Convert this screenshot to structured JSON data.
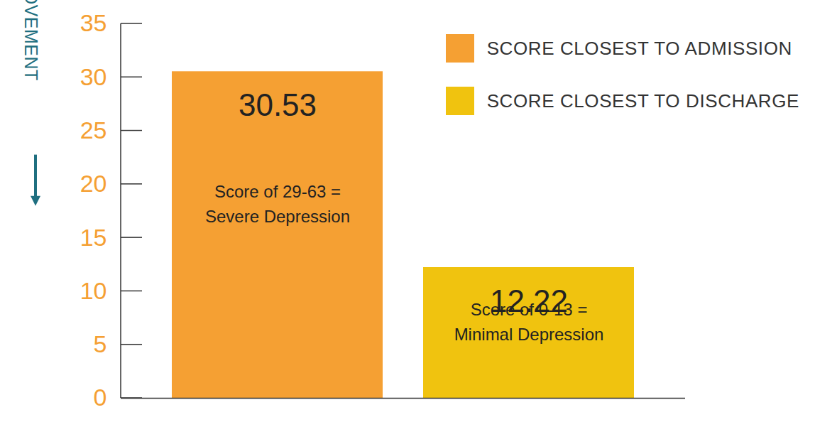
{
  "chart_data": {
    "type": "bar",
    "categories": [
      "SCORE CLOSEST TO ADMISSION",
      "SCORE CLOSEST TO DISCHARGE"
    ],
    "values": [
      30.53,
      12.22
    ],
    "colors": [
      "#f5a033",
      "#f0c30f"
    ],
    "ylabel": "IMPROVEMENT",
    "ylim": [
      0,
      35
    ],
    "yticks": [
      0,
      5,
      10,
      15,
      20,
      25,
      30,
      35
    ],
    "grid": false,
    "data_labels": true,
    "tick_labels": "y",
    "legend": "top-right",
    "annotations": [
      "Score of 29-63 = Severe Depression",
      "Score of 0-13 = Minimal Depression"
    ]
  }
}
